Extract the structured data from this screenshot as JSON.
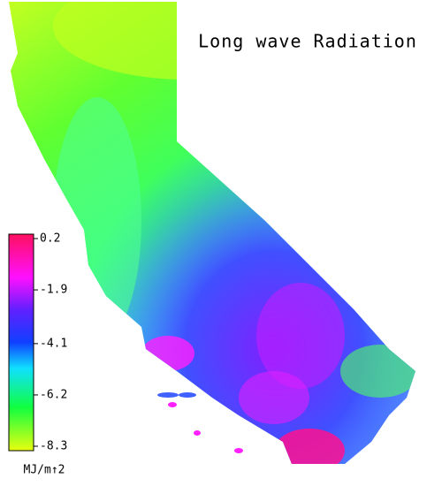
{
  "title": "Long wave Radiation",
  "colorbar": {
    "lim": [
      -8.3,
      0.2
    ],
    "ticks": [
      0.2,
      -1.9,
      -4.1,
      -6.2,
      -8.3
    ],
    "unit": "MJ/m↑2"
  }
}
